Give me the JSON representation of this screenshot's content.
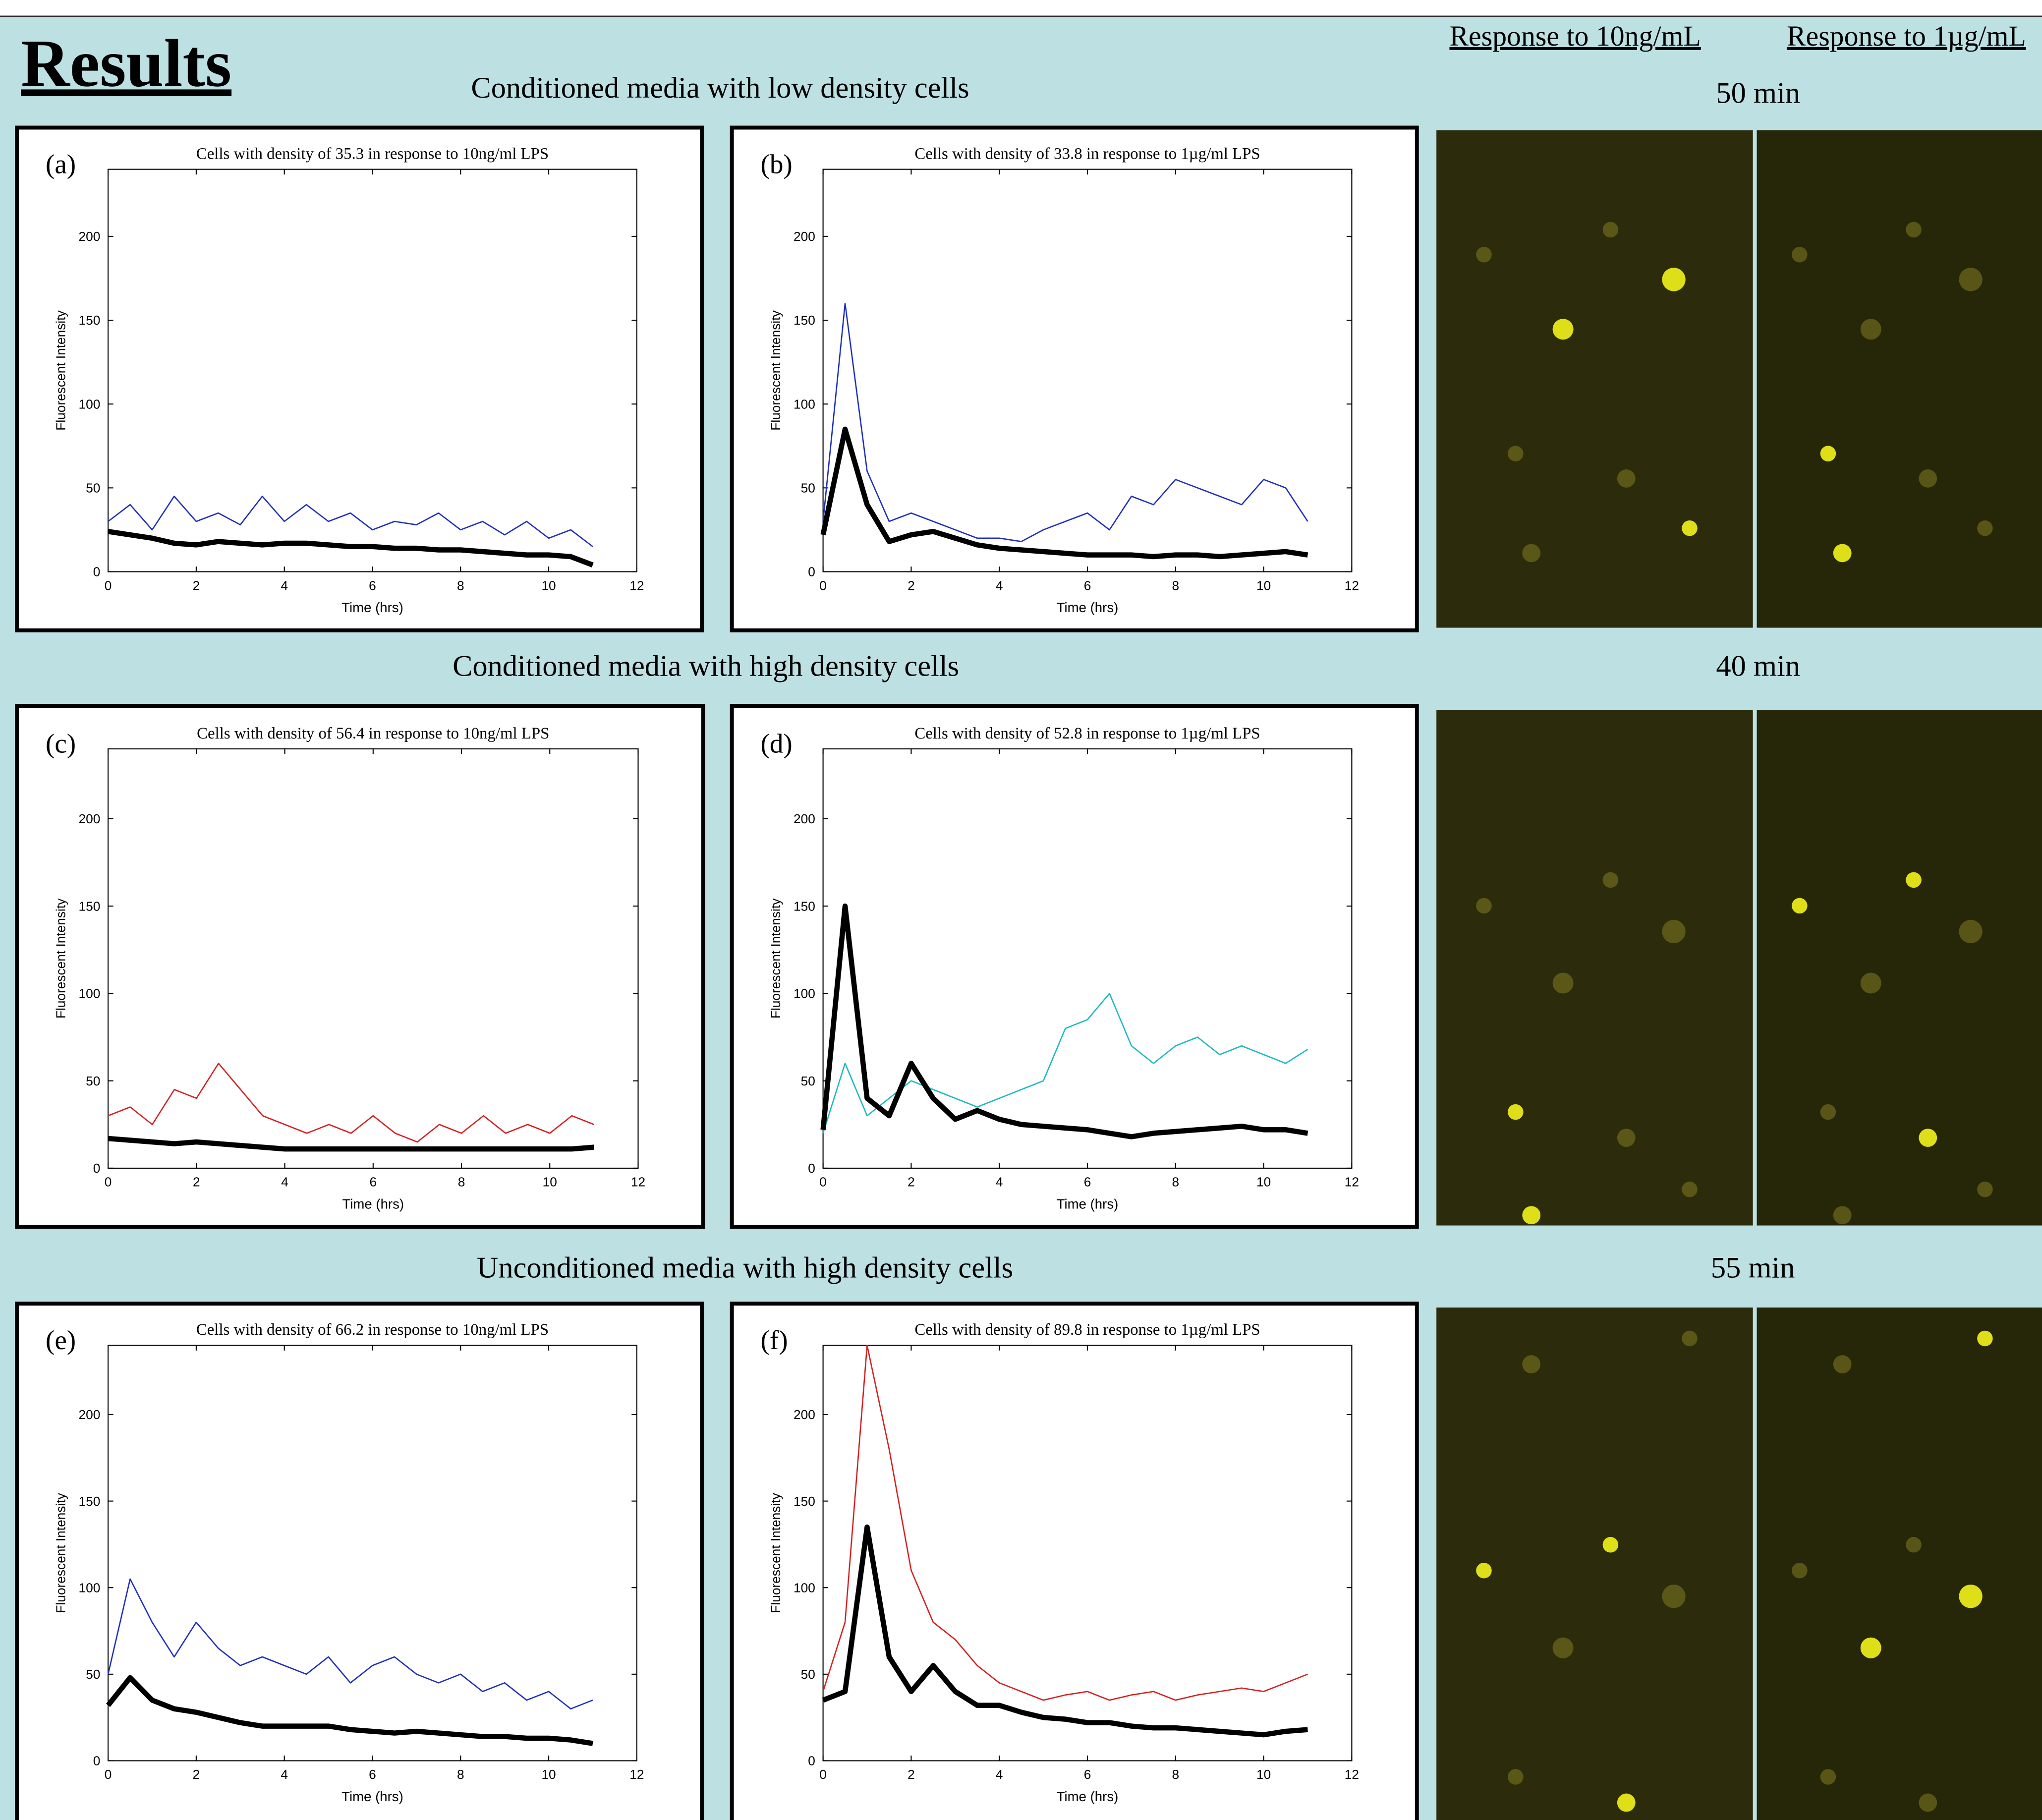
{
  "header": {
    "title": "Results",
    "columns": [
      "Response to 10ng/mL",
      "Response to 1µg/mL"
    ]
  },
  "sections": [
    {
      "title": "Conditioned media with low density cells",
      "time": "50 min"
    },
    {
      "title": "Conditioned media with high density cells",
      "time": "40 min"
    },
    {
      "title": "Unconditioned media with high density cells",
      "time": "55 min"
    }
  ],
  "chart_data": [
    {
      "type": "line",
      "panel_label": "(a)",
      "title": "Cells with density of 35.3 in response to 10ng/ml LPS",
      "xlabel": "Time (hrs)",
      "ylabel": "Fluorescent Intensity",
      "xlim": [
        0,
        12
      ],
      "xticks": [
        0,
        2,
        4,
        6,
        8,
        10,
        12
      ],
      "ylim": [
        0,
        240
      ],
      "yticks": [
        0,
        50,
        100,
        150,
        200
      ],
      "x": [
        0,
        0.5,
        1,
        1.5,
        2,
        2.5,
        3,
        3.5,
        4,
        4.5,
        5,
        5.5,
        6,
        6.5,
        7,
        7.5,
        8,
        8.5,
        9,
        9.5,
        10,
        10.5,
        11
      ],
      "series": [
        {
          "color": "#1f2fbf",
          "values": [
            30,
            40,
            25,
            45,
            30,
            35,
            28,
            45,
            30,
            40,
            30,
            35,
            25,
            30,
            28,
            35,
            25,
            30,
            22,
            30,
            20,
            25,
            15
          ]
        },
        {
          "color": "#000000",
          "values": [
            24,
            22,
            20,
            17,
            16,
            18,
            17,
            16,
            17,
            17,
            16,
            15,
            15,
            14,
            14,
            13,
            13,
            12,
            11,
            10,
            10,
            9,
            4
          ]
        }
      ]
    },
    {
      "type": "line",
      "panel_label": "(b)",
      "title": "Cells with density of 33.8 in response to 1µg/ml LPS",
      "xlabel": "Time (hrs)",
      "ylabel": "Fluorescent Intensity",
      "xlim": [
        0,
        12
      ],
      "xticks": [
        0,
        2,
        4,
        6,
        8,
        10,
        12
      ],
      "ylim": [
        0,
        240
      ],
      "yticks": [
        0,
        50,
        100,
        150,
        200
      ],
      "x": [
        0,
        0.5,
        1,
        1.5,
        2,
        2.5,
        3,
        3.5,
        4,
        4.5,
        5,
        5.5,
        6,
        6.5,
        7,
        7.5,
        8,
        8.5,
        9,
        9.5,
        10,
        10.5,
        11
      ],
      "series": [
        {
          "color": "#1f2fbf",
          "values": [
            30,
            160,
            60,
            30,
            35,
            30,
            25,
            20,
            20,
            18,
            25,
            30,
            35,
            25,
            45,
            40,
            55,
            50,
            45,
            40,
            55,
            50,
            30
          ]
        },
        {
          "color": "#000000",
          "values": [
            22,
            85,
            40,
            18,
            22,
            24,
            20,
            16,
            14,
            13,
            12,
            11,
            10,
            10,
            10,
            9,
            10,
            10,
            9,
            10,
            11,
            12,
            10
          ]
        }
      ]
    },
    {
      "type": "line",
      "panel_label": "(c)",
      "title": "Cells with density of 56.4 in response to 10ng/ml LPS",
      "xlabel": "Time (hrs)",
      "ylabel": "Fluorescent Intensity",
      "xlim": [
        0,
        12
      ],
      "xticks": [
        0,
        2,
        4,
        6,
        8,
        10,
        12
      ],
      "ylim": [
        0,
        240
      ],
      "yticks": [
        0,
        50,
        100,
        150,
        200
      ],
      "x": [
        0,
        0.5,
        1,
        1.5,
        2,
        2.5,
        3,
        3.5,
        4,
        4.5,
        5,
        5.5,
        6,
        6.5,
        7,
        7.5,
        8,
        8.5,
        9,
        9.5,
        10,
        10.5,
        11
      ],
      "series": [
        {
          "color": "#d62020",
          "values": [
            30,
            35,
            25,
            45,
            40,
            60,
            45,
            30,
            25,
            20,
            25,
            20,
            30,
            20,
            15,
            25,
            20,
            30,
            20,
            25,
            20,
            30,
            25
          ]
        },
        {
          "color": "#000000",
          "values": [
            17,
            16,
            15,
            14,
            15,
            14,
            13,
            12,
            11,
            11,
            11,
            11,
            11,
            11,
            11,
            11,
            11,
            11,
            11,
            11,
            11,
            11,
            12
          ]
        }
      ]
    },
    {
      "type": "line",
      "panel_label": "(d)",
      "title": "Cells with density of 52.8 in response to 1µg/ml LPS",
      "xlabel": "Time (hrs)",
      "ylabel": "Fluorescent Intensity",
      "xlim": [
        0,
        12
      ],
      "xticks": [
        0,
        2,
        4,
        6,
        8,
        10,
        12
      ],
      "ylim": [
        0,
        240
      ],
      "yticks": [
        0,
        50,
        100,
        150,
        200
      ],
      "x": [
        0,
        0.5,
        1,
        1.5,
        2,
        2.5,
        3,
        3.5,
        4,
        4.5,
        5,
        5.5,
        6,
        6.5,
        7,
        7.5,
        8,
        8.5,
        9,
        9.5,
        10,
        10.5,
        11
      ],
      "series": [
        {
          "color": "#20b8c0",
          "values": [
            20,
            60,
            30,
            40,
            50,
            45,
            40,
            35,
            40,
            45,
            50,
            80,
            85,
            100,
            70,
            60,
            70,
            75,
            65,
            70,
            65,
            60,
            68
          ]
        },
        {
          "color": "#000000",
          "values": [
            22,
            150,
            40,
            30,
            60,
            40,
            28,
            33,
            28,
            25,
            24,
            23,
            22,
            20,
            18,
            20,
            21,
            22,
            23,
            24,
            22,
            22,
            20
          ]
        }
      ]
    },
    {
      "type": "line",
      "panel_label": "(e)",
      "title": "Cells with density of 66.2 in response to 10ng/ml LPS",
      "xlabel": "Time (hrs)",
      "ylabel": "Fluorescent Intensity",
      "xlim": [
        0,
        12
      ],
      "xticks": [
        0,
        2,
        4,
        6,
        8,
        10,
        12
      ],
      "ylim": [
        0,
        240
      ],
      "yticks": [
        0,
        50,
        100,
        150,
        200
      ],
      "x": [
        0,
        0.5,
        1,
        1.5,
        2,
        2.5,
        3,
        3.5,
        4,
        4.5,
        5,
        5.5,
        6,
        6.5,
        7,
        7.5,
        8,
        8.5,
        9,
        9.5,
        10,
        10.5,
        11
      ],
      "series": [
        {
          "color": "#1f2fbf",
          "values": [
            50,
            105,
            80,
            60,
            80,
            65,
            55,
            60,
            55,
            50,
            60,
            45,
            55,
            60,
            50,
            45,
            50,
            40,
            45,
            35,
            40,
            30,
            35
          ]
        },
        {
          "color": "#000000",
          "values": [
            32,
            48,
            35,
            30,
            28,
            25,
            22,
            20,
            20,
            20,
            20,
            18,
            17,
            16,
            17,
            16,
            15,
            14,
            14,
            13,
            13,
            12,
            10
          ]
        }
      ]
    },
    {
      "type": "line",
      "panel_label": "(f)",
      "title": "Cells with density of 89.8 in response to 1µg/ml LPS",
      "xlabel": "Time (hrs)",
      "ylabel": "Fluorescent Intensity",
      "xlim": [
        0,
        12
      ],
      "xticks": [
        0,
        2,
        4,
        6,
        8,
        10,
        12
      ],
      "ylim": [
        0,
        240
      ],
      "yticks": [
        0,
        50,
        100,
        150,
        200
      ],
      "x": [
        0,
        0.5,
        1,
        1.5,
        2,
        2.5,
        3,
        3.5,
        4,
        4.5,
        5,
        5.5,
        6,
        6.5,
        7,
        7.5,
        8,
        8.5,
        9,
        9.5,
        10,
        10.5,
        11
      ],
      "series": [
        {
          "color": "#d62020",
          "values": [
            40,
            80,
            240,
            180,
            110,
            80,
            70,
            55,
            45,
            40,
            35,
            38,
            40,
            35,
            38,
            40,
            35,
            38,
            40,
            42,
            40,
            45,
            50
          ]
        },
        {
          "color": "#000000",
          "values": [
            35,
            40,
            135,
            60,
            40,
            55,
            40,
            32,
            32,
            28,
            25,
            24,
            22,
            22,
            20,
            19,
            19,
            18,
            17,
            16,
            15,
            17,
            18
          ]
        }
      ]
    }
  ]
}
